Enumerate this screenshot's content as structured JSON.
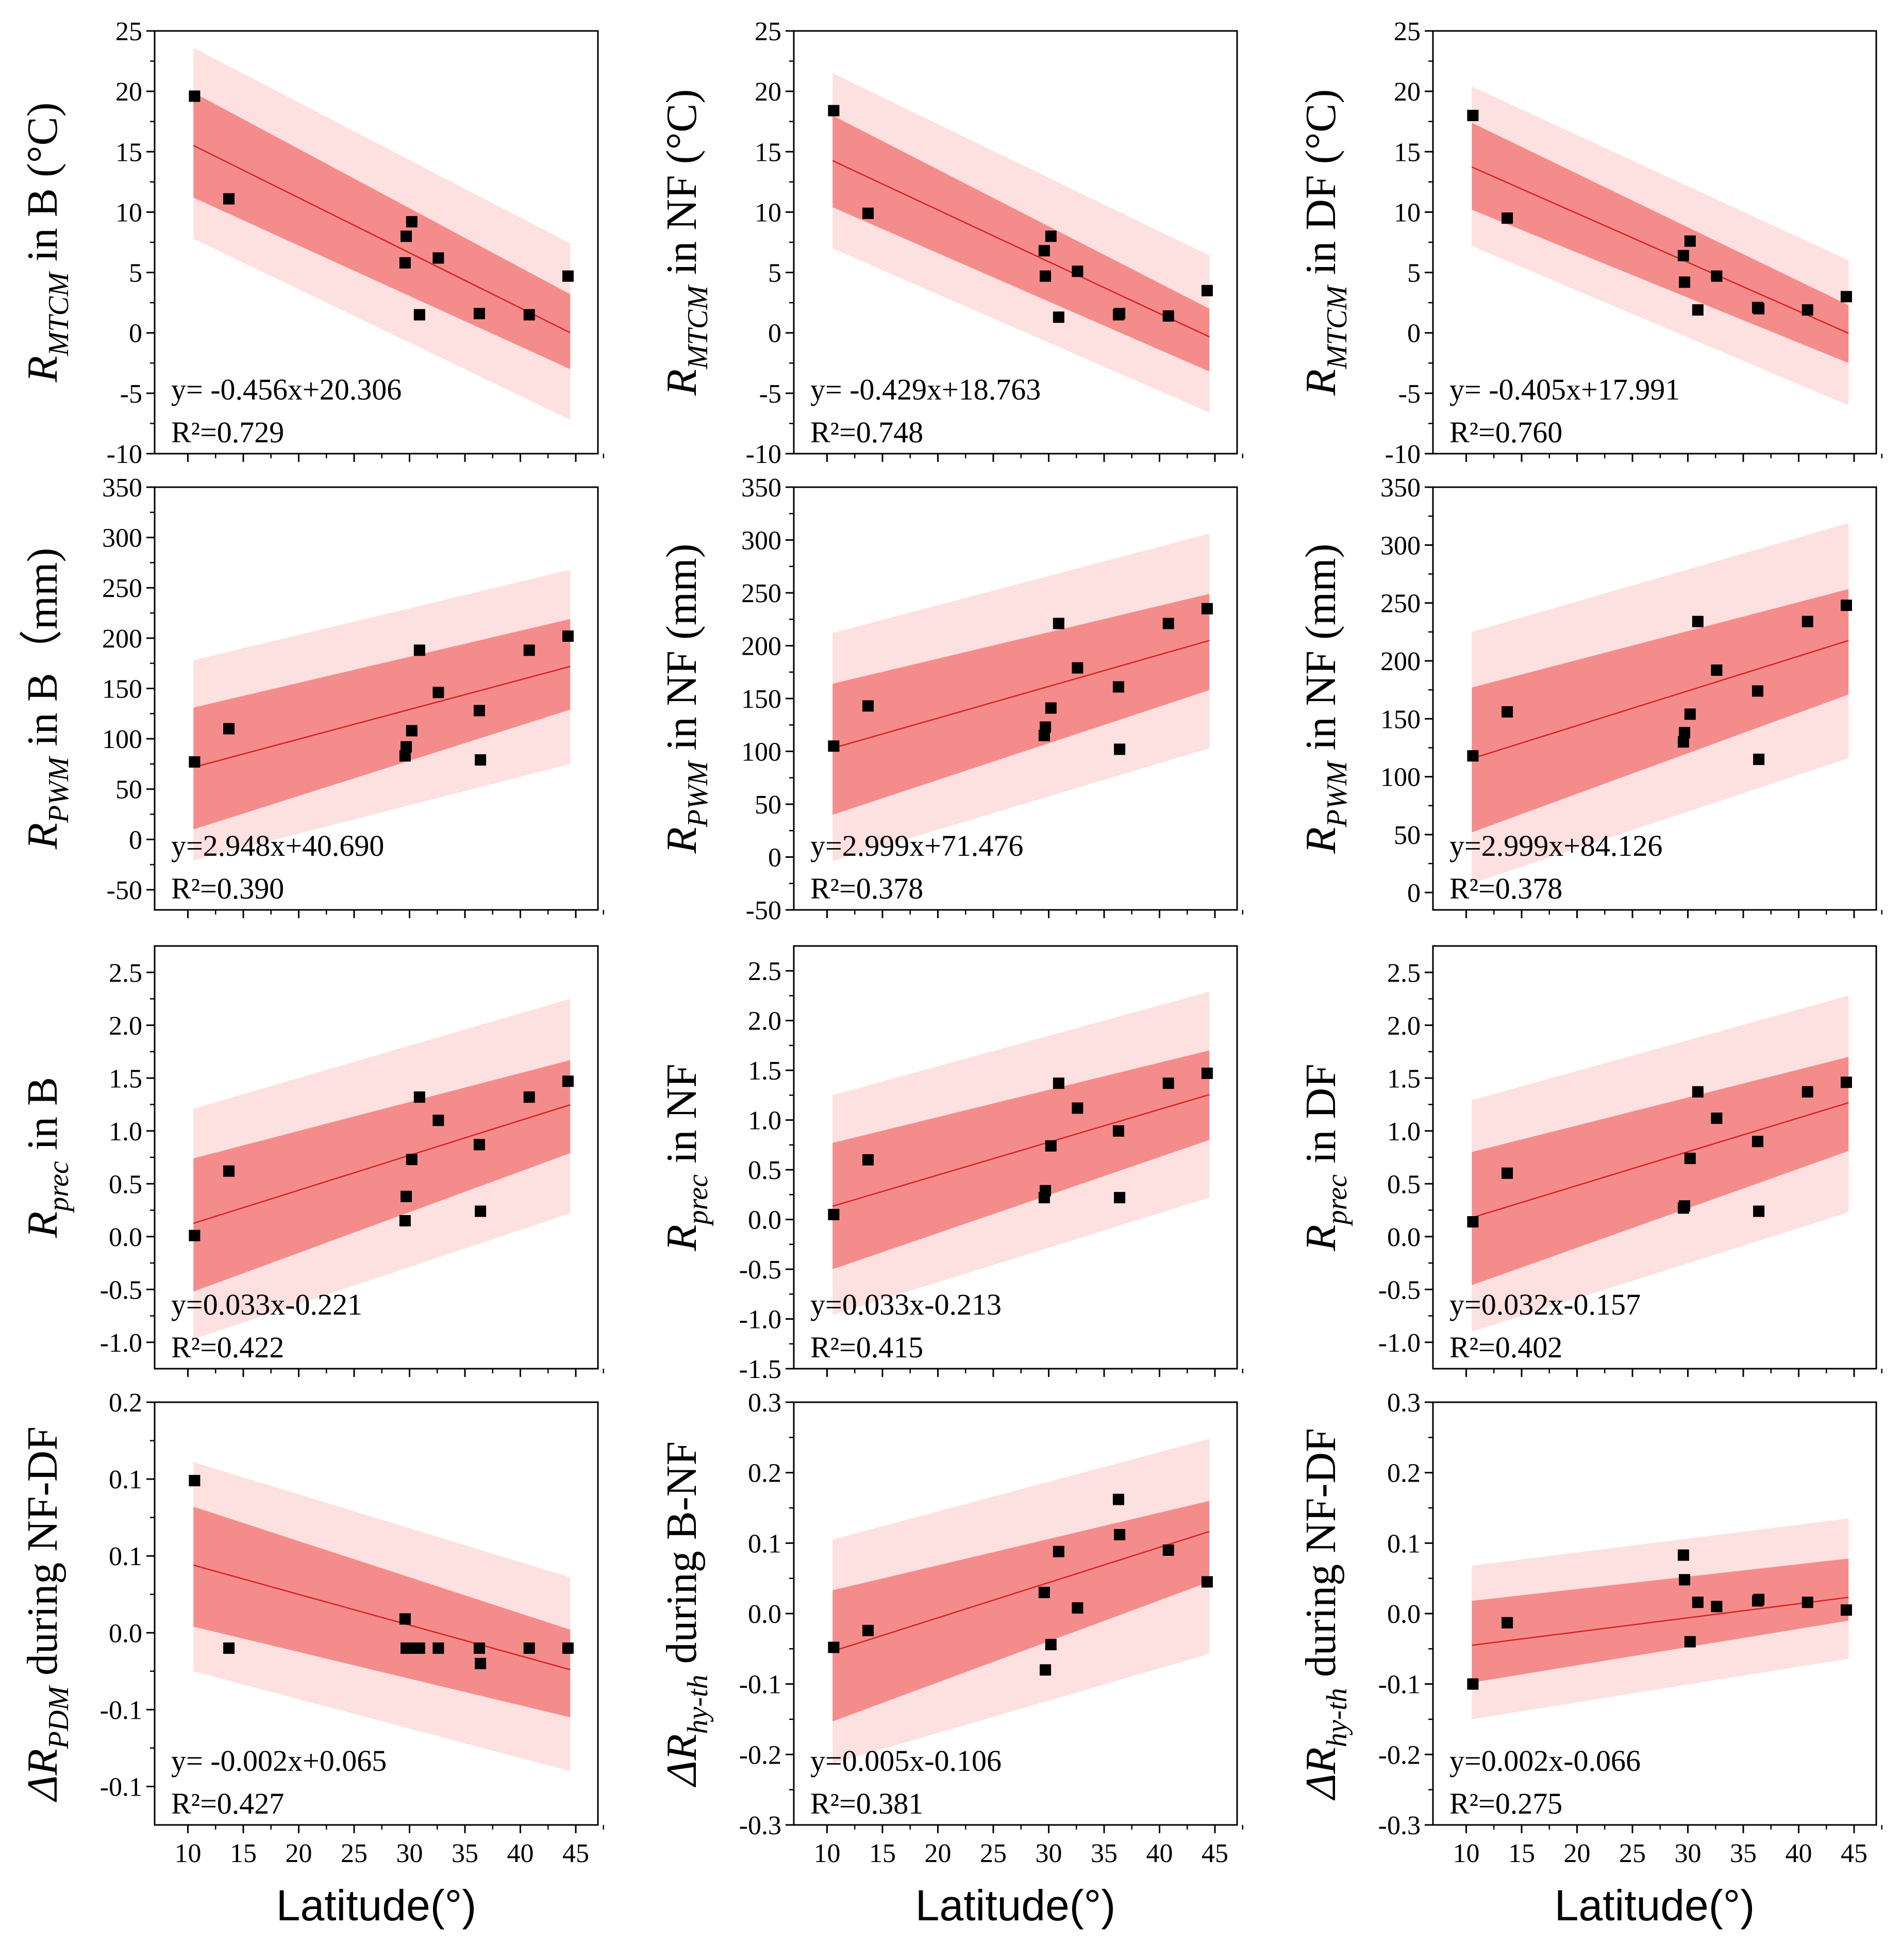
{
  "colors": {
    "band_pi": "#fde0e0",
    "band_ci": "#f58c8c",
    "fit_line": "#d62020",
    "point": "#000000",
    "axis": "#000000"
  },
  "x_axis": {
    "label": "Latitude(°)",
    "range": [
      7,
      47
    ],
    "ticks": [
      "10",
      "15",
      "20",
      "25",
      "30",
      "35",
      "40",
      "45"
    ]
  },
  "chart_data": [
    {
      "type": "scatter",
      "ylabel": {
        "main": "R",
        "sub": "MTCM",
        "rest": " in B (°C)"
      },
      "ylim": [
        -10,
        25
      ],
      "yticks": [
        "-10",
        "-5",
        "0",
        "5",
        "10",
        "15",
        "20",
        "25"
      ],
      "x": [
        10.6,
        13.7,
        29.6,
        29.7,
        30.2,
        30.9,
        32.6,
        36.3,
        40.8,
        44.3
      ],
      "y": [
        19.6,
        11.1,
        5.8,
        8.0,
        9.2,
        1.5,
        6.2,
        1.6,
        1.5,
        4.7
      ],
      "fit": {
        "slope": -0.456,
        "intercept": 20.306
      },
      "ci": {
        "x": [
          10.5,
          44.5
        ],
        "lo": [
          11.2,
          -3.0
        ],
        "hi": [
          19.9,
          3.2
        ]
      },
      "pi": {
        "x": [
          10.5,
          44.5
        ],
        "lo": [
          7.8,
          -7.2
        ],
        "hi": [
          23.6,
          7.4
        ]
      },
      "equation": "y= -0.456x+20.306",
      "r2": "R²=0.729"
    },
    {
      "type": "scatter",
      "ylabel": {
        "main": "R",
        "sub": "MTCM",
        "rest": " in NF (°C)"
      },
      "ylim": [
        -10,
        25
      ],
      "yticks": [
        "-10",
        "-5",
        "0",
        "5",
        "10",
        "15",
        "20",
        "25"
      ],
      "x": [
        10.6,
        13.7,
        29.6,
        29.7,
        30.2,
        30.9,
        32.6,
        36.3,
        36.4,
        40.8,
        44.3
      ],
      "y": [
        18.4,
        9.9,
        6.8,
        4.7,
        8.0,
        1.3,
        5.1,
        1.5,
        1.6,
        1.4,
        3.5
      ],
      "fit": {
        "slope": -0.429,
        "intercept": 18.763
      },
      "ci": {
        "x": [
          10.5,
          44.5
        ],
        "lo": [
          10.4,
          -3.2
        ],
        "hi": [
          18.0,
          2.0
        ]
      },
      "pi": {
        "x": [
          10.5,
          44.5
        ],
        "lo": [
          7.0,
          -6.6
        ],
        "hi": [
          21.5,
          6.4
        ]
      },
      "equation": "y= -0.429x+18.763",
      "r2": "R²=0.748"
    },
    {
      "type": "scatter",
      "ylabel": {
        "main": "R",
        "sub": "MTCM",
        "rest": " in DF (°C)"
      },
      "ylim": [
        -10,
        25
      ],
      "yticks": [
        "-10",
        "-5",
        "0",
        "5",
        "10",
        "15",
        "20",
        "25"
      ],
      "x": [
        10.6,
        13.7,
        29.6,
        29.7,
        30.2,
        30.9,
        32.6,
        36.3,
        36.4,
        40.8,
        44.3
      ],
      "y": [
        18.0,
        9.5,
        6.4,
        4.2,
        7.6,
        1.9,
        4.7,
        2.1,
        2.0,
        1.9,
        3.0
      ],
      "fit": {
        "slope": -0.405,
        "intercept": 17.991
      },
      "ci": {
        "x": [
          10.5,
          44.5
        ],
        "lo": [
          10.2,
          -2.5
        ],
        "hi": [
          17.4,
          2.3
        ]
      },
      "pi": {
        "x": [
          10.5,
          44.5
        ],
        "lo": [
          7.2,
          -6.0
        ],
        "hi": [
          20.4,
          6.0
        ]
      },
      "equation": "y= -0.405x+17.991",
      "r2": "R²=0.760"
    },
    {
      "type": "scatter",
      "ylabel": {
        "main": "R",
        "sub": "PWM",
        "rest": " in B（mm)"
      },
      "ylim": [
        -70,
        350
      ],
      "yticks": [
        "-50",
        "0",
        "50",
        "100",
        "150",
        "200",
        "250",
        "300",
        "350"
      ],
      "x": [
        10.6,
        13.7,
        29.6,
        29.7,
        30.2,
        30.9,
        32.6,
        36.3,
        36.4,
        40.8,
        44.3
      ],
      "y": [
        77,
        110,
        83,
        92,
        108,
        188,
        146,
        128,
        79,
        188,
        202
      ],
      "fit": {
        "slope": 2.948,
        "intercept": 40.69
      },
      "ci": {
        "x": [
          10.5,
          44.5
        ],
        "lo": [
          10,
          129
        ],
        "hi": [
          131,
          219
        ]
      },
      "pi": {
        "x": [
          10.5,
          44.5
        ],
        "lo": [
          -21,
          75
        ],
        "hi": [
          178,
          268
        ]
      },
      "equation": "y=2.948x+40.690",
      "r2": "R²=0.390"
    },
    {
      "type": "scatter",
      "ylabel": {
        "main": "R",
        "sub": "PWM",
        "rest": " in NF (mm)"
      },
      "ylim": [
        -50,
        350
      ],
      "yticks": [
        "-50",
        "0",
        "50",
        "100",
        "150",
        "200",
        "250",
        "300",
        "350"
      ],
      "x": [
        10.6,
        13.7,
        29.6,
        29.7,
        30.2,
        30.9,
        32.6,
        36.3,
        36.4,
        40.8,
        44.3
      ],
      "y": [
        105,
        143,
        115,
        123,
        141,
        221,
        179,
        161,
        102,
        221,
        235
      ],
      "fit": {
        "slope": 2.999,
        "intercept": 71.476
      },
      "ci": {
        "x": [
          10.5,
          44.5
        ],
        "lo": [
          40,
          158
        ],
        "hi": [
          164,
          249
        ]
      },
      "pi": {
        "x": [
          10.5,
          44.5
        ],
        "lo": [
          -4,
          103
        ],
        "hi": [
          212,
          306
        ]
      },
      "equation": "y=2.999x+71.476",
      "r2": "R²=0.378"
    },
    {
      "type": "scatter",
      "ylabel": {
        "main": "R",
        "sub": "PWM",
        "rest": " in NF (mm)"
      },
      "ylim": [
        -15,
        350
      ],
      "yticks": [
        "0",
        "50",
        "100",
        "150",
        "200",
        "250",
        "300",
        "350"
      ],
      "x": [
        10.6,
        13.7,
        29.6,
        29.7,
        30.2,
        30.9,
        32.6,
        36.3,
        36.4,
        40.8,
        44.3
      ],
      "y": [
        118,
        156,
        130,
        138,
        154,
        234,
        192,
        174,
        115,
        234,
        248
      ],
      "fit": {
        "slope": 2.999,
        "intercept": 84.126
      },
      "ci": {
        "x": [
          10.5,
          44.5
        ],
        "lo": [
          52,
          171
        ],
        "hi": [
          177,
          262
        ]
      },
      "pi": {
        "x": [
          10.5,
          44.5
        ],
        "lo": [
          8,
          116
        ],
        "hi": [
          225,
          319
        ]
      },
      "equation": "y=2.999x+84.126",
      "r2": "R²=0.378"
    },
    {
      "type": "scatter",
      "ylabel": {
        "main": "R",
        "sub": "prec",
        "rest": " in B"
      },
      "ylim": [
        -1.25,
        2.75
      ],
      "yticks": [
        "-1.0",
        "-0.5",
        "0.0",
        "0.5",
        "1.0",
        "1.5",
        "2.0",
        "2.5"
      ],
      "x": [
        10.6,
        13.7,
        29.6,
        29.7,
        30.2,
        30.9,
        32.6,
        36.3,
        36.4,
        40.8,
        44.3
      ],
      "y": [
        0.01,
        0.62,
        0.15,
        0.38,
        0.73,
        1.32,
        1.1,
        0.87,
        0.24,
        1.32,
        1.47
      ],
      "fit": {
        "slope": 0.033,
        "intercept": -0.221
      },
      "ci": {
        "x": [
          10.5,
          44.5
        ],
        "lo": [
          -0.52,
          0.79
        ],
        "hi": [
          0.74,
          1.67
        ]
      },
      "pi": {
        "x": [
          10.5,
          44.5
        ],
        "lo": [
          -0.97,
          0.22
        ],
        "hi": [
          1.21,
          2.25
        ]
      },
      "equation": "y=0.033x-0.221",
      "r2": "R²=0.422"
    },
    {
      "type": "scatter",
      "ylabel": {
        "main": "R",
        "sub": "prec",
        "rest": " in NF"
      },
      "ylim": [
        -1.5,
        2.75
      ],
      "yticks": [
        "-1.5",
        "-1.0",
        "-0.5",
        "0.0",
        "0.5",
        "1.0",
        "1.5",
        "2.0",
        "2.5"
      ],
      "x": [
        10.6,
        13.7,
        29.6,
        29.7,
        30.2,
        30.9,
        32.6,
        36.3,
        36.4,
        40.8,
        44.3
      ],
      "y": [
        0.05,
        0.6,
        0.22,
        0.29,
        0.74,
        1.37,
        1.12,
        0.89,
        0.22,
        1.37,
        1.47
      ],
      "fit": {
        "slope": 0.033,
        "intercept": -0.213
      },
      "ci": {
        "x": [
          10.5,
          44.5
        ],
        "lo": [
          -0.5,
          0.8
        ],
        "hi": [
          0.77,
          1.7
        ]
      },
      "pi": {
        "x": [
          10.5,
          44.5
        ],
        "lo": [
          -0.96,
          0.22
        ],
        "hi": [
          1.25,
          2.29
        ]
      },
      "equation": "y=0.033x-0.213",
      "r2": "R²=0.415"
    },
    {
      "type": "scatter",
      "ylabel": {
        "main": "R",
        "sub": "prec",
        "rest": " in DF"
      },
      "ylim": [
        -1.25,
        2.75
      ],
      "yticks": [
        "-1.0",
        "-0.5",
        "0.0",
        "0.5",
        "1.0",
        "1.5",
        "2.0",
        "2.5"
      ],
      "x": [
        10.6,
        13.7,
        29.6,
        29.7,
        30.2,
        30.9,
        32.6,
        36.3,
        36.4,
        40.8,
        44.3
      ],
      "y": [
        0.14,
        0.6,
        0.27,
        0.29,
        0.74,
        1.37,
        1.12,
        0.9,
        0.24,
        1.37,
        1.46
      ],
      "fit": {
        "slope": 0.032,
        "intercept": -0.157
      },
      "ci": {
        "x": [
          10.5,
          44.5
        ],
        "lo": [
          -0.46,
          0.81
        ],
        "hi": [
          0.8,
          1.7
        ]
      },
      "pi": {
        "x": [
          10.5,
          44.5
        ],
        "lo": [
          -0.9,
          0.23
        ],
        "hi": [
          1.29,
          2.28
        ]
      },
      "equation": "y=0.032x-0.157",
      "r2": "R²=0.402"
    },
    {
      "type": "scatter",
      "ylabel": {
        "main": "ΔR",
        "sub": "PDM",
        "rest": " during NF-DF"
      },
      "ylim": [
        -0.125,
        0.15
      ],
      "yticks": [
        "-0.1",
        "-0.1",
        "0.0",
        "0.1",
        "0.1",
        "0.2"
      ],
      "ytick_vals": [
        -0.1,
        -0.05,
        0.0,
        0.05,
        0.1,
        0.15
      ],
      "x": [
        10.6,
        13.7,
        29.6,
        29.7,
        30.2,
        30.9,
        32.6,
        36.3,
        36.4,
        40.8,
        44.3
      ],
      "y": [
        0.099,
        -0.01,
        0.009,
        -0.01,
        -0.01,
        -0.01,
        -0.01,
        -0.01,
        -0.02,
        -0.01,
        -0.01
      ],
      "fit": {
        "slope": -0.002,
        "intercept": 0.065
      },
      "ci": {
        "x": [
          10.5,
          44.5
        ],
        "lo": [
          0.004,
          -0.055
        ],
        "hi": [
          0.082,
          0.002
        ]
      },
      "pi": {
        "x": [
          10.5,
          44.5
        ],
        "lo": [
          -0.025,
          -0.09
        ],
        "hi": [
          0.111,
          0.036
        ]
      },
      "equation": "y= -0.002x+0.065",
      "r2": "R²=0.427"
    },
    {
      "type": "scatter",
      "ylabel": {
        "main": "ΔR",
        "sub": "hy-th",
        "rest": " during B-NF"
      },
      "ylim": [
        -0.3,
        0.3
      ],
      "yticks": [
        "-0.3",
        "-0.2",
        "-0.1",
        "0.0",
        "0.1",
        "0.2",
        "0.3"
      ],
      "ytick_vals": [
        -0.3,
        -0.2,
        -0.1,
        0.0,
        0.1,
        0.2,
        0.3
      ],
      "x": [
        10.6,
        13.7,
        29.6,
        29.7,
        30.2,
        30.9,
        32.6,
        36.3,
        36.4,
        40.8,
        44.3
      ],
      "y": [
        -0.048,
        -0.024,
        0.03,
        -0.08,
        -0.044,
        0.088,
        0.008,
        0.162,
        0.112,
        0.09,
        0.045
      ],
      "fit": {
        "slope": 0.005,
        "intercept": -0.106
      },
      "ci": {
        "x": [
          10.5,
          44.5
        ],
        "lo": [
          -0.153,
          0.045
        ],
        "hi": [
          0.033,
          0.16
        ]
      },
      "pi": {
        "x": [
          10.5,
          44.5
        ],
        "lo": [
          -0.213,
          -0.057
        ],
        "hi": [
          0.105,
          0.248
        ]
      },
      "equation": "y=0.005x-0.106",
      "r2": "R²=0.381"
    },
    {
      "type": "scatter",
      "ylabel": {
        "main": "ΔR",
        "sub": "hy-th",
        "rest": " during NF-DF"
      },
      "ylim": [
        -0.3,
        0.3
      ],
      "yticks": [
        "-0.3",
        "-0.2",
        "-0.1",
        "0.0",
        "0.1",
        "0.2",
        "0.3"
      ],
      "ytick_vals": [
        -0.3,
        -0.2,
        -0.1,
        0.0,
        0.1,
        0.2,
        0.3
      ],
      "x": [
        10.6,
        13.7,
        29.6,
        29.7,
        30.2,
        30.9,
        32.6,
        36.3,
        36.4,
        40.8,
        44.3
      ],
      "y": [
        -0.1,
        -0.013,
        0.083,
        0.048,
        -0.04,
        0.016,
        0.01,
        0.018,
        0.02,
        0.016,
        0.005
      ],
      "fit": {
        "slope": 0.002,
        "intercept": -0.066
      },
      "ci": {
        "x": [
          10.5,
          44.5
        ],
        "lo": [
          -0.098,
          -0.01
        ],
        "hi": [
          0.018,
          0.078
        ]
      },
      "pi": {
        "x": [
          10.5,
          44.5
        ],
        "lo": [
          -0.15,
          -0.064
        ],
        "hi": [
          0.068,
          0.135
        ]
      },
      "equation": "y=0.002x-0.066",
      "r2": "R²=0.275"
    }
  ]
}
